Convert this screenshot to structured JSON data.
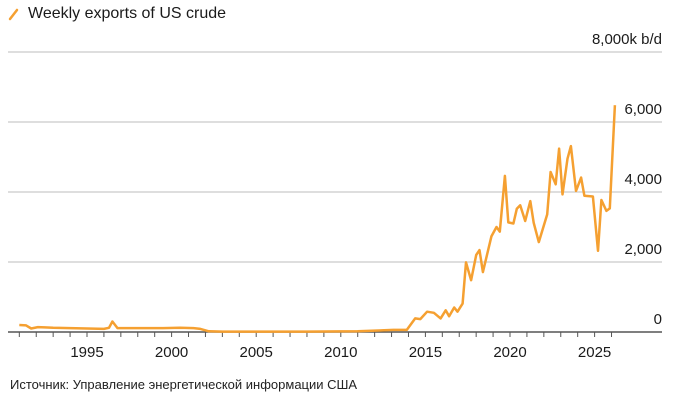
{
  "chart_data": {
    "type": "line",
    "title": "",
    "legend": [
      {
        "name": "Weekly exports of US crude",
        "color": "#f5a031"
      }
    ],
    "legend_placement": "top-left",
    "xlabel": "",
    "ylabel": "",
    "y_unit_label": "8,000k b/d",
    "xlim": [
      1991,
      2026.8
    ],
    "ylim": [
      0,
      8000
    ],
    "x_ticks": [
      1995,
      2000,
      2005,
      2010,
      2015,
      2020,
      2025
    ],
    "y_ticks": [
      0,
      2000,
      4000,
      6000,
      8000
    ],
    "y_tick_labels": [
      "0",
      "2,000",
      "4,000",
      "6,000",
      "8,000k b/d"
    ],
    "grid": "horizontal",
    "series": [
      {
        "name": "Weekly exports of US crude",
        "color": "#f5a031",
        "x": [
          1991.0,
          1991.4,
          1991.7,
          1992.1,
          1992.5,
          1993,
          1994,
          1995,
          1996,
          1996.3,
          1996.5,
          1996.8,
          1997.5,
          1998.5,
          1999.5,
          2000.5,
          2001.3,
          2001.7,
          2002.2,
          2003,
          2005,
          2008,
          2011,
          2013.1,
          2013.9,
          2014.4,
          2014.7,
          2015.1,
          2015.5,
          2015.9,
          2016.2,
          2016.4,
          2016.7,
          2016.9,
          2017.2,
          2017.4,
          2017.7,
          2018.0,
          2018.2,
          2018.4,
          2018.9,
          2019.2,
          2019.4,
          2019.7,
          2019.9,
          2020.2,
          2020.4,
          2020.6,
          2020.9,
          2021.2,
          2021.4,
          2021.7,
          2022.2,
          2022.4,
          2022.7,
          2022.9,
          2023.1,
          2023.4,
          2023.6,
          2023.9,
          2024.2,
          2024.4,
          2024.9,
          2025.2,
          2025.4,
          2025.7,
          2025.9,
          2026.2
        ],
        "y": [
          200,
          190,
          100,
          140,
          130,
          120,
          110,
          100,
          90,
          120,
          300,
          110,
          110,
          110,
          110,
          120,
          110,
          90,
          20,
          10,
          10,
          10,
          20,
          60,
          60,
          390,
          370,
          580,
          550,
          390,
          620,
          450,
          700,
          580,
          810,
          1990,
          1480,
          2200,
          2340,
          1710,
          2730,
          3000,
          2870,
          4460,
          3130,
          3100,
          3520,
          3620,
          3170,
          3740,
          3120,
          2570,
          3360,
          4570,
          4220,
          5240,
          3930,
          4950,
          5310,
          4030,
          4410,
          3890,
          3870,
          2320,
          3770,
          3460,
          3530,
          6480
        ]
      }
    ]
  },
  "footer": {
    "source": "Источник: Управление энергетической информации США"
  }
}
